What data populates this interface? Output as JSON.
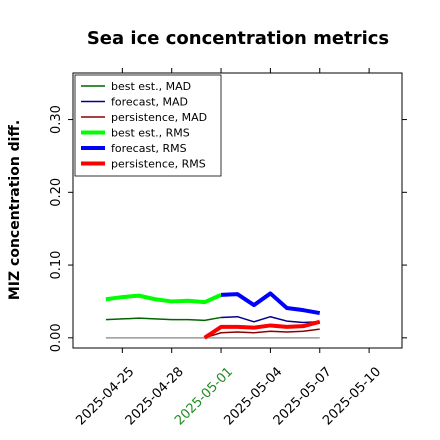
{
  "chart_data": {
    "type": "line",
    "title": "Sea ice concentration metrics",
    "ylabel": "MIZ concentration diff.",
    "x": [
      "2025-04-24",
      "2025-04-25",
      "2025-04-26",
      "2025-04-27",
      "2025-04-28",
      "2025-04-29",
      "2025-04-30",
      "2025-05-01",
      "2025-05-02",
      "2025-05-03",
      "2025-05-04",
      "2025-05-05",
      "2025-05-06",
      "2025-05-07"
    ],
    "xlim": [
      "2025-04-22",
      "2025-05-12"
    ],
    "xticks": [
      "2025-04-25",
      "2025-04-28",
      "2025-05-01",
      "2025-05-04",
      "2025-05-07",
      "2025-05-10"
    ],
    "xtick_colors": [
      "#000000",
      "#000000",
      "#228b22",
      "#000000",
      "#000000",
      "#000000"
    ],
    "ylim": [
      -0.014,
      0.364
    ],
    "yticks": [
      {
        "value": 0,
        "label": "0.00"
      },
      {
        "value": 0.1,
        "label": "0.10"
      },
      {
        "value": 0.2,
        "label": "0.20"
      },
      {
        "value": 0.3,
        "label": "0.30"
      }
    ],
    "legend": "upper left",
    "series": [
      {
        "name": "best est., MAD",
        "color": "#006400",
        "linewidth": 1.5,
        "values": [
          0.025,
          0.026,
          0.027,
          0.026,
          0.025,
          0.025,
          0.024,
          0.028,
          null,
          null,
          null,
          null,
          null,
          null
        ]
      },
      {
        "name": "forecast,  MAD",
        "color": "#00008b",
        "linewidth": 1.5,
        "values": [
          null,
          null,
          null,
          null,
          null,
          null,
          null,
          0.028,
          0.029,
          0.022,
          0.029,
          0.023,
          0.021,
          0.022
        ]
      },
      {
        "name": "persistence, MAD",
        "color": "#8b0000",
        "linewidth": 1.5,
        "values": [
          null,
          null,
          null,
          null,
          null,
          null,
          0.0,
          0.007,
          0.008,
          0.007,
          0.009,
          0.008,
          0.009,
          0.012
        ]
      },
      {
        "name": "best est., RMS",
        "color": "#00ff00",
        "linewidth": 4,
        "values": [
          0.053,
          0.056,
          0.058,
          0.053,
          0.05,
          0.051,
          0.049,
          0.059,
          null,
          null,
          null,
          null,
          null,
          null
        ]
      },
      {
        "name": "forecast,  RMS",
        "color": "#0000ff",
        "linewidth": 4,
        "values": [
          null,
          null,
          null,
          null,
          null,
          null,
          null,
          0.059,
          0.06,
          0.045,
          0.061,
          0.041,
          0.038,
          0.034
        ]
      },
      {
        "name": "persistence, RMS",
        "color": "#ff0000",
        "linewidth": 4,
        "values": [
          null,
          null,
          null,
          null,
          null,
          null,
          0.0,
          0.015,
          0.015,
          0.014,
          0.017,
          0.015,
          0.016,
          0.022
        ]
      }
    ]
  }
}
